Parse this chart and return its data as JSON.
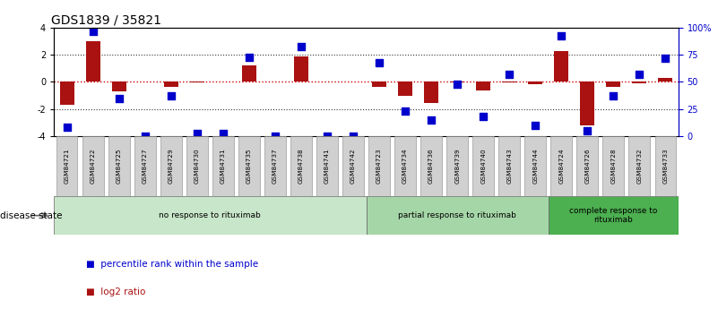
{
  "title": "GDS1839 / 35821",
  "samples": [
    "GSM84721",
    "GSM84722",
    "GSM84725",
    "GSM84727",
    "GSM84729",
    "GSM84730",
    "GSM84731",
    "GSM84735",
    "GSM84737",
    "GSM84738",
    "GSM84741",
    "GSM84742",
    "GSM84723",
    "GSM84734",
    "GSM84736",
    "GSM84739",
    "GSM84740",
    "GSM84743",
    "GSM84744",
    "GSM84724",
    "GSM84726",
    "GSM84728",
    "GSM84732",
    "GSM84733"
  ],
  "log2_ratio": [
    -1.7,
    3.0,
    -0.7,
    0.0,
    -0.4,
    -0.05,
    0.02,
    1.2,
    0.0,
    1.9,
    0.0,
    0.05,
    -0.35,
    -1.05,
    -1.55,
    -0.05,
    -0.65,
    -0.05,
    -0.2,
    2.3,
    -3.2,
    -0.35,
    -0.1,
    0.3
  ],
  "percentile": [
    8,
    97,
    35,
    0,
    37,
    2,
    2,
    73,
    0,
    83,
    0,
    0,
    68,
    23,
    15,
    48,
    18,
    57,
    10,
    93,
    5,
    37,
    57,
    72
  ],
  "groups": [
    {
      "label": "no response to rituximab",
      "start": 0,
      "end": 12,
      "color": "#c8e6c9"
    },
    {
      "label": "partial response to rituximab",
      "start": 12,
      "end": 19,
      "color": "#a5d6a7"
    },
    {
      "label": "complete response to\nrituximab",
      "start": 19,
      "end": 24,
      "color": "#4caf50"
    }
  ],
  "bar_color": "#aa1111",
  "dot_color": "#0000cc",
  "ylim_left": [
    -4.0,
    4.0
  ],
  "ylim_right": [
    0,
    100
  ],
  "yticks_left": [
    -4,
    -2,
    0,
    2,
    4
  ],
  "yticks_right": [
    0,
    25,
    50,
    75,
    100
  ],
  "ytick_labels_right": [
    "0",
    "25",
    "50",
    "75",
    "100%"
  ],
  "hline_color": "#cc0000",
  "dotted_color": "#333333",
  "legend_items": [
    {
      "label": "log2 ratio",
      "color": "#aa1111"
    },
    {
      "label": "percentile rank within the sample",
      "color": "#0000cc"
    }
  ],
  "disease_state_label": "disease state",
  "title_fontsize": 10,
  "tick_fontsize": 7,
  "bar_width": 0.55
}
